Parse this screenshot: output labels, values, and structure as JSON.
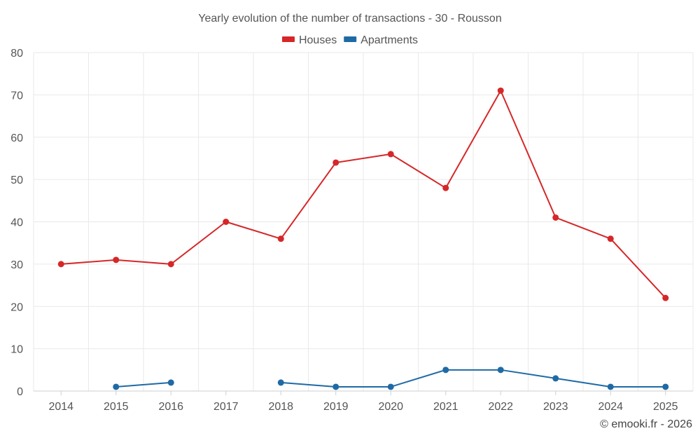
{
  "chart_data": {
    "type": "line",
    "title": "Yearly evolution of the number of transactions - 30 - Rousson",
    "xlabel": "",
    "ylabel": "",
    "ylim": [
      0,
      80
    ],
    "yticks": [
      "0",
      "10",
      "20",
      "30",
      "40",
      "50",
      "60",
      "70",
      "80"
    ],
    "categories": [
      "2014",
      "2015",
      "2016",
      "2017",
      "2018",
      "2019",
      "2020",
      "2021",
      "2022",
      "2023",
      "2024",
      "2025"
    ],
    "series": [
      {
        "name": "Houses",
        "color": "#d62728",
        "values": [
          30,
          31,
          30,
          40,
          36,
          54,
          56,
          48,
          71,
          41,
          36,
          22
        ]
      },
      {
        "name": "Apartments",
        "color": "#1f6aa5",
        "values": [
          null,
          1,
          2,
          null,
          2,
          1,
          1,
          5,
          5,
          3,
          1,
          1
        ]
      }
    ],
    "legend_position": "top-center",
    "grid": true
  },
  "credit": "© emooki.fr - 2026"
}
